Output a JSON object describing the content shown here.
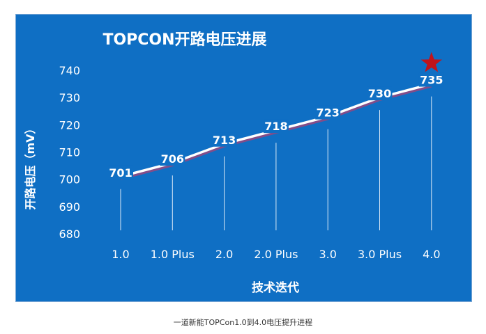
{
  "chart_data": {
    "type": "line",
    "title": "TOPCON开路电压进展",
    "xlabel": "技术迭代",
    "ylabel": "开路电压（mV）",
    "categories": [
      "1.0",
      "1.0 Plus",
      "2.0",
      "2.0 Plus",
      "3.0",
      "3.0 Plus",
      "4.0"
    ],
    "values": [
      701,
      706,
      713,
      718,
      723,
      730,
      735
    ],
    "ylim": [
      680,
      740
    ],
    "yticks": [
      680,
      690,
      700,
      710,
      720,
      730,
      740
    ],
    "grid": false,
    "highlight": {
      "category": "4.0",
      "marker": "star"
    }
  },
  "colors": {
    "background": "#0f6fc4",
    "line": "#ffffff",
    "line_shadow": "#c03a6a",
    "drop_line": "#ffffff",
    "star": "#c0141c",
    "text": "#ffffff"
  },
  "caption": "一道新能TOPCon1.0到4.0电压提升进程"
}
